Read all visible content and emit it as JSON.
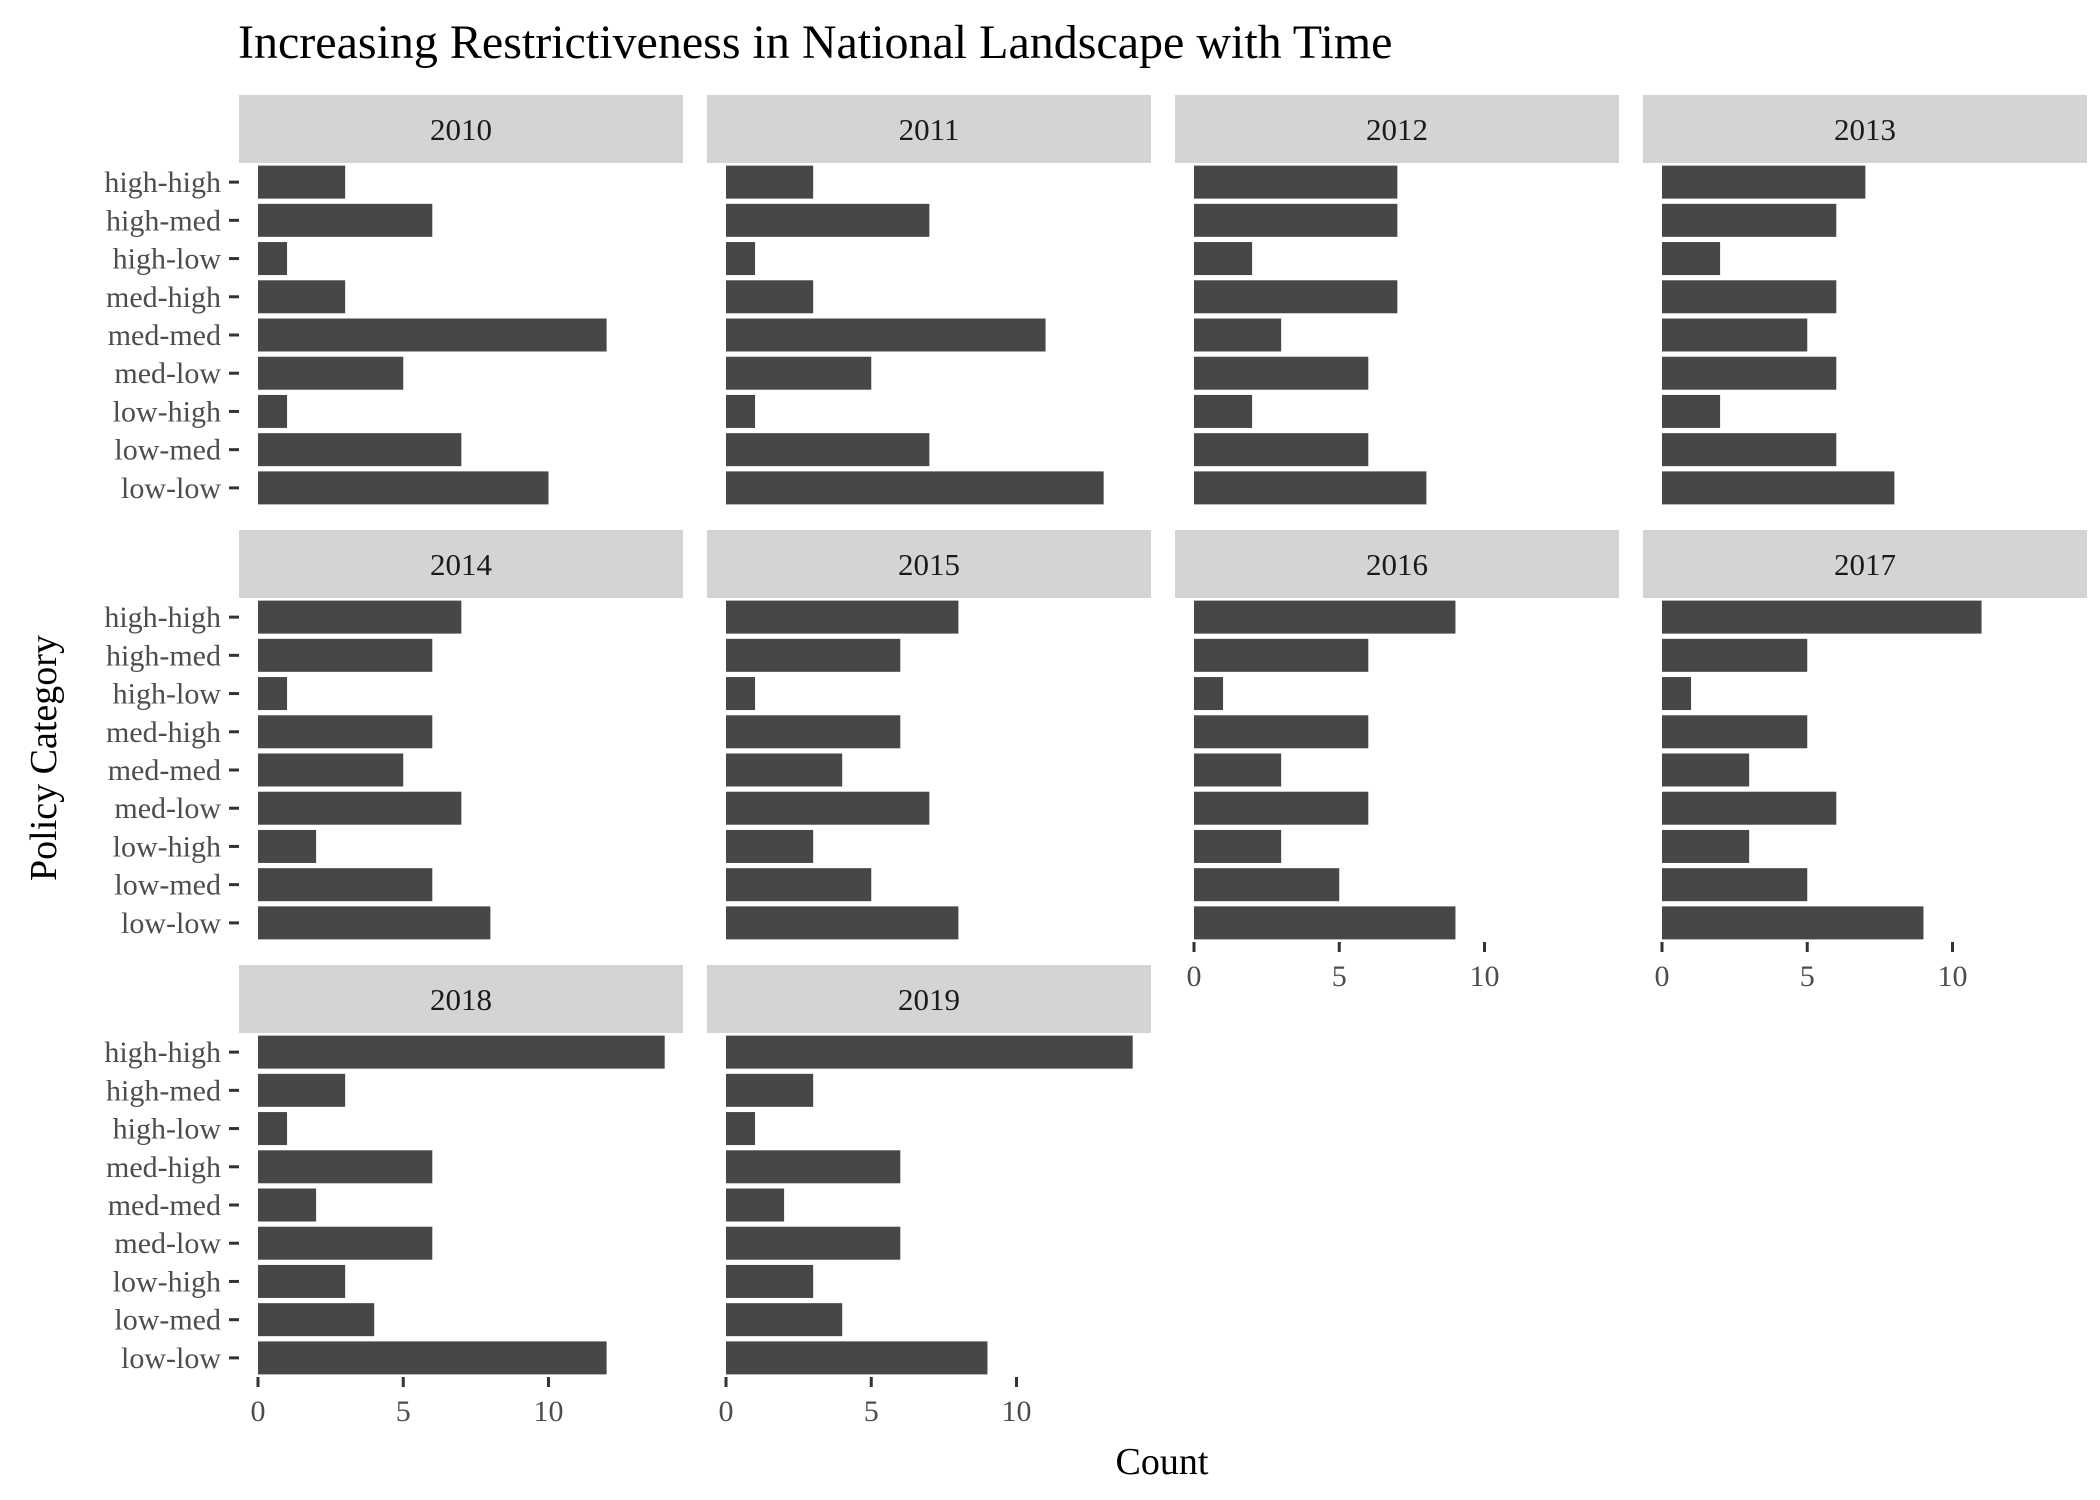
{
  "chart_data": {
    "type": "bar",
    "orientation": "horizontal",
    "title": "Increasing Restrictiveness in National Landscape with Time",
    "xlabel": "Count",
    "ylabel": "Policy Category",
    "xlim": [
      0,
      14
    ],
    "x_ticks": [
      0,
      5,
      10
    ],
    "categories": [
      "high-high",
      "high-med",
      "high-low",
      "med-high",
      "med-med",
      "med-low",
      "low-high",
      "low-med",
      "low-low"
    ],
    "grid": false,
    "bar_color": "#474747",
    "strip_color": "#d4d4d4",
    "facets": [
      {
        "label": "2010",
        "values": [
          3,
          6,
          1,
          3,
          12,
          5,
          1,
          7,
          10
        ]
      },
      {
        "label": "2011",
        "values": [
          3,
          7,
          1,
          3,
          11,
          5,
          1,
          7,
          13
        ]
      },
      {
        "label": "2012",
        "values": [
          7,
          7,
          2,
          7,
          3,
          6,
          2,
          6,
          8
        ]
      },
      {
        "label": "2013",
        "values": [
          7,
          6,
          2,
          6,
          5,
          6,
          2,
          6,
          8
        ]
      },
      {
        "label": "2014",
        "values": [
          7,
          6,
          1,
          6,
          5,
          7,
          2,
          6,
          8
        ]
      },
      {
        "label": "2015",
        "values": [
          8,
          6,
          1,
          6,
          4,
          7,
          3,
          5,
          8
        ]
      },
      {
        "label": "2016",
        "values": [
          9,
          6,
          1,
          6,
          3,
          6,
          3,
          5,
          9
        ]
      },
      {
        "label": "2017",
        "values": [
          11,
          5,
          1,
          5,
          3,
          6,
          3,
          5,
          9
        ]
      },
      {
        "label": "2018",
        "values": [
          14,
          3,
          1,
          6,
          2,
          6,
          3,
          4,
          12
        ]
      },
      {
        "label": "2019",
        "values": [
          14,
          3,
          1,
          6,
          2,
          6,
          3,
          4,
          9
        ]
      }
    ]
  }
}
